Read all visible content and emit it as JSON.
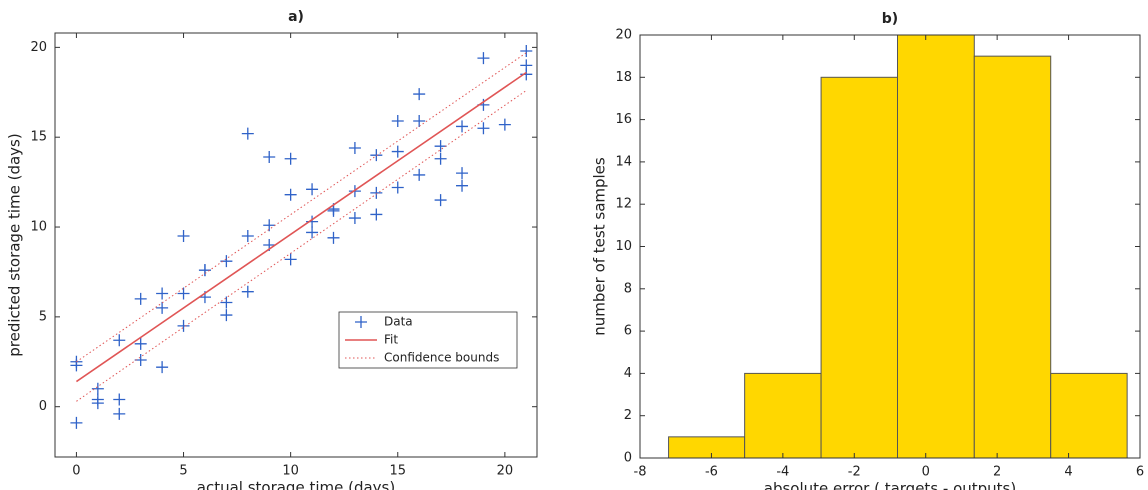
{
  "chart_data": [
    {
      "type": "scatter",
      "title": "a)",
      "xlabel": "actual storage time (days)",
      "ylabel": "predicted storage time (days)",
      "xlim": [
        -1,
        21.5
      ],
      "ylim": [
        -2.8,
        20.8
      ],
      "xticks": [
        0,
        5,
        10,
        15,
        20
      ],
      "yticks": [
        0,
        5,
        10,
        15,
        20
      ],
      "legend": "lower right",
      "series": [
        {
          "name": "Data",
          "color": "#2f62c8",
          "marker": "+",
          "x": [
            0,
            0,
            0,
            1,
            1,
            1,
            2,
            2,
            2,
            3,
            3,
            3,
            4,
            4,
            4,
            5,
            5,
            5,
            6,
            6,
            6,
            7,
            7,
            7,
            8,
            8,
            8,
            9,
            9,
            9,
            10,
            10,
            10,
            11,
            11,
            11,
            12,
            12,
            12,
            13,
            13,
            13,
            14,
            14,
            14,
            15,
            15,
            15,
            16,
            16,
            16,
            17,
            17,
            17,
            18,
            18,
            18,
            19,
            19,
            19,
            20,
            21,
            21,
            21
          ],
          "values": [
            -0.9,
            2.3,
            2.5,
            0.2,
            0.4,
            1.0,
            3.7,
            0.4,
            -0.4,
            6.0,
            3.5,
            2.6,
            6.3,
            5.5,
            2.2,
            9.5,
            6.3,
            4.5,
            7.6,
            7.6,
            6.1,
            8.1,
            5.8,
            5.1,
            15.2,
            9.5,
            6.4,
            13.9,
            10.1,
            9.0,
            13.8,
            11.8,
            8.2,
            12.1,
            10.3,
            9.7,
            11.0,
            10.9,
            9.4,
            14.4,
            12.0,
            10.5,
            14.0,
            11.9,
            10.7,
            15.9,
            14.2,
            12.2,
            17.4,
            15.9,
            12.9,
            14.5,
            13.8,
            11.5,
            15.6,
            13.0,
            12.3,
            19.4,
            16.8,
            15.5,
            15.7,
            19.8,
            19.0,
            18.5
          ]
        },
        {
          "name": "Fit",
          "color": "#e05555",
          "x": [
            0,
            21
          ],
          "values": [
            1.4,
            18.6
          ]
        },
        {
          "name": "Confidence bounds",
          "color": "#e05555",
          "linestyle": "dotted",
          "x": [
            0,
            21
          ],
          "lower": [
            0.3,
            17.6
          ],
          "upper": [
            2.5,
            19.7
          ]
        }
      ]
    },
    {
      "type": "histogram",
      "title": "b)",
      "xlabel": "absolute error ( targets - outputs)",
      "ylabel": "number of test samples",
      "xlim": [
        -8,
        6
      ],
      "ylim": [
        0,
        20
      ],
      "xticks": [
        -8,
        -6,
        -4,
        -2,
        0,
        2,
        4,
        6
      ],
      "yticks": [
        0,
        2,
        4,
        6,
        8,
        10,
        12,
        14,
        16,
        18,
        20
      ],
      "bins": [
        -7.2,
        -5.07,
        -2.93,
        -0.79,
        1.36,
        3.5,
        5.64
      ],
      "values": [
        1,
        4,
        18,
        20,
        19,
        4
      ],
      "color": "#ffd700"
    }
  ]
}
